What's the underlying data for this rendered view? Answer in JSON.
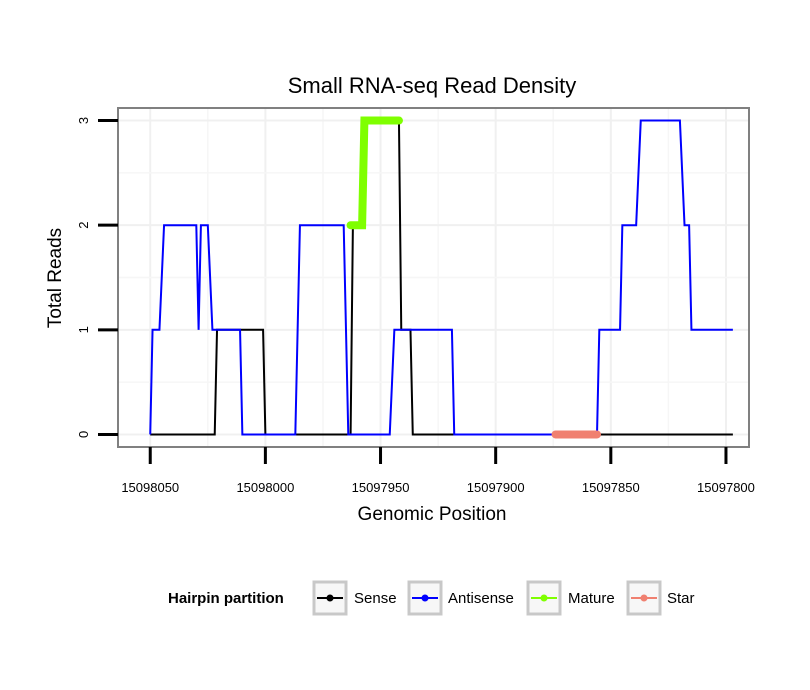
{
  "chart_data": {
    "type": "line",
    "title": "Small RNA-seq Read Density",
    "xlabel": "Genomic Position",
    "ylabel": "Total Reads",
    "x_reversed": true,
    "xlim": [
      15098064,
      15097790
    ],
    "ylim": [
      -0.12,
      3.12
    ],
    "x_ticks": [
      15098050,
      15098000,
      15097950,
      15097900,
      15097850,
      15097800
    ],
    "x_tick_labels": [
      "15098050",
      "15098000",
      "15097950",
      "15097900",
      "15097850",
      "15097800"
    ],
    "y_ticks": [
      0,
      1,
      2,
      3
    ],
    "y_tick_labels": [
      "0",
      "1",
      "2",
      "3"
    ],
    "grid": true,
    "legend": {
      "title": "Hairpin partition",
      "placement": "bottom",
      "entries": [
        {
          "name": "Sense",
          "color": "#000000"
        },
        {
          "name": "Antisense",
          "color": "#0000ff"
        },
        {
          "name": "Mature",
          "color": "#7fff00"
        },
        {
          "name": "Star",
          "color": "#f08070"
        }
      ]
    },
    "series": [
      {
        "name": "Sense",
        "color": "#000000",
        "line_width": 2,
        "points": [
          [
            15098050,
            0
          ],
          [
            15098022,
            0
          ],
          [
            15098021,
            1
          ],
          [
            15098001,
            1
          ],
          [
            15098000,
            0
          ],
          [
            15097963,
            0
          ],
          [
            15097962,
            2
          ],
          [
            15097958,
            2
          ],
          [
            15097957,
            3
          ],
          [
            15097942,
            3
          ],
          [
            15097941,
            1
          ],
          [
            15097937,
            1
          ],
          [
            15097936,
            0
          ],
          [
            15097797,
            0
          ]
        ]
      },
      {
        "name": "Antisense",
        "color": "#0000ff",
        "line_width": 2,
        "points": [
          [
            15098050,
            0
          ],
          [
            15098049,
            1
          ],
          [
            15098046,
            1
          ],
          [
            15098044,
            2
          ],
          [
            15098030,
            2
          ],
          [
            15098029,
            1
          ],
          [
            15098028,
            2
          ],
          [
            15098025,
            2
          ],
          [
            15098023,
            1
          ],
          [
            15098011,
            1
          ],
          [
            15098010,
            0
          ],
          [
            15097987,
            0
          ],
          [
            15097985,
            2
          ],
          [
            15097966,
            2
          ],
          [
            15097964,
            0
          ],
          [
            15097946,
            0
          ],
          [
            15097944,
            1
          ],
          [
            15097919,
            1
          ],
          [
            15097918,
            0
          ],
          [
            15097856,
            0
          ],
          [
            15097855,
            1
          ],
          [
            15097846,
            1
          ],
          [
            15097845,
            2
          ],
          [
            15097839,
            2
          ],
          [
            15097837,
            3
          ],
          [
            15097820,
            3
          ],
          [
            15097818,
            2
          ],
          [
            15097816,
            2
          ],
          [
            15097815,
            1
          ],
          [
            15097797,
            1
          ]
        ]
      },
      {
        "name": "Mature",
        "color": "#7fff00",
        "line_width": 8,
        "points": [
          [
            15097963,
            2
          ],
          [
            15097958,
            2
          ],
          [
            15097957,
            3
          ],
          [
            15097942,
            3
          ]
        ]
      },
      {
        "name": "Star",
        "color": "#f08070",
        "line_width": 8,
        "points": [
          [
            15097874,
            0
          ],
          [
            15097856,
            0
          ]
        ]
      }
    ]
  }
}
